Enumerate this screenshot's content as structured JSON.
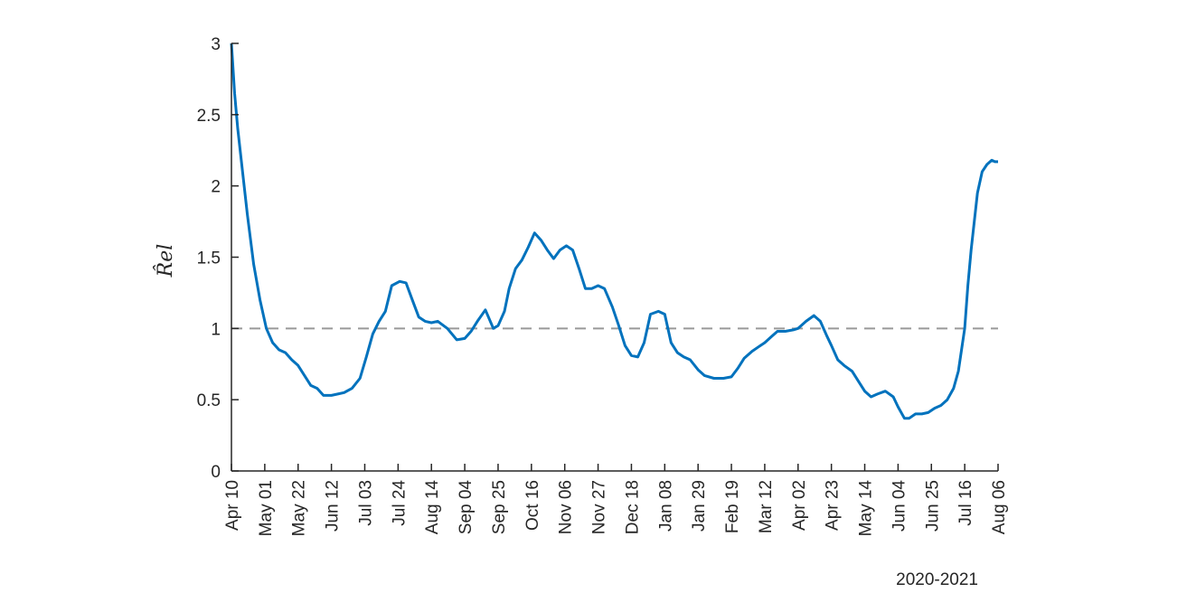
{
  "chart_data": {
    "type": "line",
    "ylabel": "R̂el",
    "ylim": [
      0,
      3
    ],
    "yticks": [
      0,
      0.5,
      1,
      1.5,
      2,
      2.5,
      3
    ],
    "xtick_labels": [
      "Apr 10",
      "May 01",
      "May 22",
      "Jun 12",
      "Jul 03",
      "Jul 24",
      "Aug 14",
      "Sep 04",
      "Sep 25",
      "Oct 16",
      "Nov 06",
      "Nov 27",
      "Dec 18",
      "Jan 08",
      "Jan 29",
      "Feb 19",
      "Mar 12",
      "Apr 02",
      "Apr 23",
      "May 14",
      "Jun 04",
      "Jun 25",
      "Jul 16",
      "Aug 06"
    ],
    "period_label": "2020-2021",
    "reference_line": 1,
    "colors": {
      "series": "#0072bd",
      "reference": "#999999"
    },
    "series": [
      {
        "x": [
          "2020-04-10",
          "2020-04-12",
          "2020-04-14",
          "2020-04-17",
          "2020-04-20",
          "2020-04-24",
          "2020-04-28",
          "2020-05-02",
          "2020-05-06",
          "2020-05-10",
          "2020-05-14",
          "2020-05-18",
          "2020-05-22",
          "2020-05-26",
          "2020-05-30",
          "2020-06-03",
          "2020-06-07",
          "2020-06-12",
          "2020-06-16",
          "2020-06-20",
          "2020-06-25",
          "2020-06-30",
          "2020-07-04",
          "2020-07-08",
          "2020-07-12",
          "2020-07-16",
          "2020-07-20",
          "2020-07-25",
          "2020-07-29",
          "2020-08-02",
          "2020-08-06",
          "2020-08-10",
          "2020-08-14",
          "2020-08-18",
          "2020-08-24",
          "2020-08-30",
          "2020-09-04",
          "2020-09-08",
          "2020-09-12",
          "2020-09-17",
          "2020-09-22",
          "2020-09-25",
          "2020-09-29",
          "2020-10-02",
          "2020-10-06",
          "2020-10-10",
          "2020-10-14",
          "2020-10-18",
          "2020-10-22",
          "2020-10-26",
          "2020-10-30",
          "2020-11-03",
          "2020-11-07",
          "2020-11-11",
          "2020-11-15",
          "2020-11-19",
          "2020-11-23",
          "2020-11-27",
          "2020-12-01",
          "2020-12-06",
          "2020-12-10",
          "2020-12-14",
          "2020-12-18",
          "2020-12-22",
          "2020-12-26",
          "2020-12-30",
          "2021-01-04",
          "2021-01-08",
          "2021-01-12",
          "2021-01-16",
          "2021-01-20",
          "2021-01-24",
          "2021-01-29",
          "2021-02-02",
          "2021-02-08",
          "2021-02-14",
          "2021-02-19",
          "2021-02-23",
          "2021-02-27",
          "2021-03-04",
          "2021-03-08",
          "2021-03-12",
          "2021-03-16",
          "2021-03-20",
          "2021-03-25",
          "2021-03-30",
          "2021-04-02",
          "2021-04-07",
          "2021-04-12",
          "2021-04-16",
          "2021-04-20",
          "2021-04-23",
          "2021-04-27",
          "2021-05-01",
          "2021-05-06",
          "2021-05-10",
          "2021-05-14",
          "2021-05-18",
          "2021-05-22",
          "2021-05-27",
          "2021-06-01",
          "2021-06-04",
          "2021-06-08",
          "2021-06-11",
          "2021-06-15",
          "2021-06-19",
          "2021-06-23",
          "2021-06-27",
          "2021-07-01",
          "2021-07-05",
          "2021-07-09",
          "2021-07-12",
          "2021-07-14",
          "2021-07-16",
          "2021-07-18",
          "2021-07-20",
          "2021-07-22",
          "2021-07-24",
          "2021-07-27",
          "2021-07-30",
          "2021-08-02",
          "2021-08-04",
          "2021-08-06"
        ],
        "y": [
          3.0,
          2.65,
          2.4,
          2.1,
          1.8,
          1.45,
          1.2,
          1.0,
          0.9,
          0.85,
          0.83,
          0.78,
          0.74,
          0.67,
          0.6,
          0.58,
          0.53,
          0.53,
          0.54,
          0.55,
          0.58,
          0.65,
          0.8,
          0.96,
          1.05,
          1.12,
          1.3,
          1.33,
          1.32,
          1.2,
          1.08,
          1.05,
          1.04,
          1.05,
          1.0,
          0.92,
          0.93,
          0.98,
          1.05,
          1.13,
          1.0,
          1.02,
          1.12,
          1.28,
          1.42,
          1.48,
          1.57,
          1.67,
          1.62,
          1.55,
          1.49,
          1.55,
          1.58,
          1.55,
          1.42,
          1.28,
          1.28,
          1.3,
          1.28,
          1.15,
          1.02,
          0.88,
          0.81,
          0.8,
          0.9,
          1.1,
          1.12,
          1.1,
          0.9,
          0.83,
          0.8,
          0.78,
          0.71,
          0.67,
          0.65,
          0.65,
          0.66,
          0.72,
          0.79,
          0.84,
          0.87,
          0.9,
          0.94,
          0.98,
          0.98,
          0.99,
          1.0,
          1.05,
          1.09,
          1.05,
          0.95,
          0.88,
          0.78,
          0.74,
          0.7,
          0.63,
          0.56,
          0.52,
          0.54,
          0.56,
          0.52,
          0.45,
          0.37,
          0.37,
          0.4,
          0.4,
          0.41,
          0.44,
          0.46,
          0.5,
          0.58,
          0.7,
          0.85,
          1.0,
          1.3,
          1.55,
          1.75,
          1.95,
          2.1,
          2.15,
          2.18,
          2.17,
          2.17
        ]
      }
    ]
  }
}
